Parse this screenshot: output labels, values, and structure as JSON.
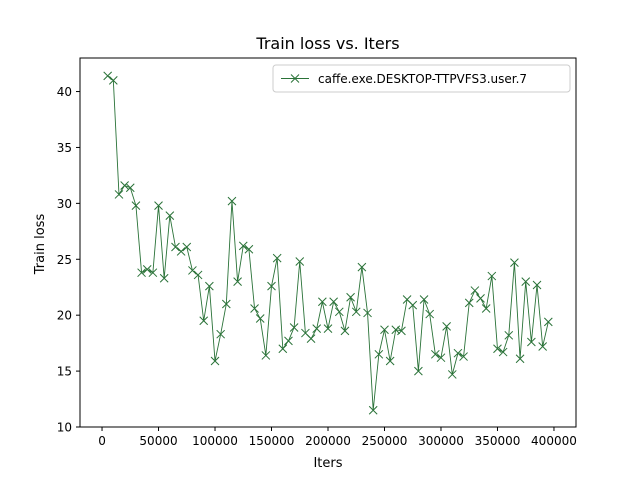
{
  "chart_data": {
    "type": "line",
    "title": "Train loss  vs. Iters",
    "xlabel": "Iters",
    "ylabel": "Train loss",
    "xlim": [
      -19500,
      419500
    ],
    "ylim": [
      10,
      43
    ],
    "x_ticks": [
      0,
      50000,
      100000,
      150000,
      200000,
      250000,
      300000,
      350000,
      400000
    ],
    "x_tick_labels": [
      "0",
      "50000",
      "100000",
      "150000",
      "200000",
      "250000",
      "300000",
      "350000",
      "400000"
    ],
    "y_ticks": [
      10,
      15,
      20,
      25,
      30,
      35,
      40
    ],
    "y_tick_labels": [
      "10",
      "15",
      "20",
      "25",
      "30",
      "35",
      "40"
    ],
    "grid": false,
    "legend_position": "top-right",
    "series": [
      {
        "name": "caffe.exe.DESKTOP-TTPVFS3.user.7",
        "color": "#2a7238",
        "marker": "x",
        "x": [
          5000,
          10000,
          15000,
          20000,
          25000,
          30000,
          35000,
          40000,
          45000,
          50000,
          55000,
          60000,
          65000,
          70000,
          75000,
          80000,
          85000,
          90000,
          95000,
          100000,
          105000,
          110000,
          115000,
          120000,
          125000,
          130000,
          135000,
          140000,
          145000,
          150000,
          155000,
          160000,
          165000,
          170000,
          175000,
          180000,
          185000,
          190000,
          195000,
          200000,
          205000,
          210000,
          215000,
          220000,
          225000,
          230000,
          235000,
          240000,
          245000,
          250000,
          255000,
          260000,
          265000,
          270000,
          275000,
          280000,
          285000,
          290000,
          295000,
          300000,
          305000,
          310000,
          315000,
          320000,
          325000,
          330000,
          335000,
          340000,
          345000,
          350000,
          355000,
          360000,
          365000,
          370000,
          375000,
          380000,
          385000,
          390000,
          395000
        ],
        "y": [
          41.4,
          41.0,
          30.8,
          31.6,
          31.4,
          29.8,
          23.8,
          24.1,
          23.8,
          29.8,
          23.3,
          28.9,
          26.1,
          25.7,
          26.1,
          24.0,
          23.6,
          19.5,
          22.6,
          15.9,
          18.3,
          21.0,
          30.2,
          23.0,
          26.2,
          25.9,
          20.6,
          19.7,
          16.4,
          22.6,
          25.1,
          17.0,
          17.7,
          18.9,
          24.8,
          18.4,
          17.9,
          18.8,
          21.2,
          18.8,
          21.2,
          20.3,
          18.6,
          21.6,
          20.3,
          24.3,
          20.2,
          11.5,
          16.5,
          18.7,
          15.9,
          18.7,
          18.6,
          21.4,
          20.9,
          15.0,
          21.4,
          20.1,
          16.5,
          16.2,
          19.0,
          14.7,
          16.6,
          16.3,
          21.1,
          22.2,
          21.5,
          20.6,
          23.5,
          17.0,
          16.7,
          18.2,
          24.7,
          16.1,
          23.0,
          17.6,
          22.7,
          17.2,
          19.4
        ]
      }
    ]
  }
}
